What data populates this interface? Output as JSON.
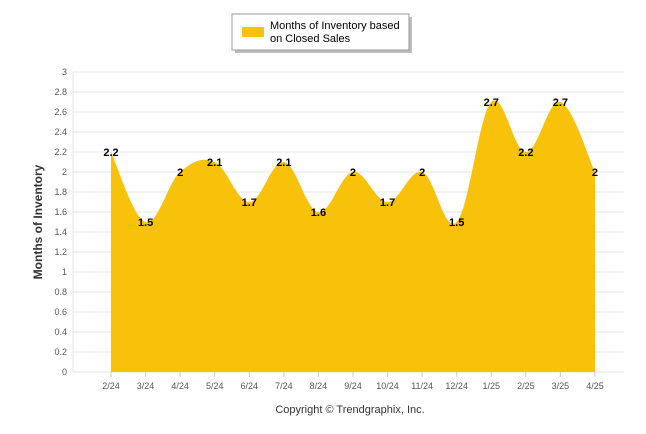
{
  "chart_data": {
    "type": "area",
    "categories": [
      "2/24",
      "3/24",
      "4/24",
      "5/24",
      "6/24",
      "7/24",
      "8/24",
      "9/24",
      "10/24",
      "11/24",
      "12/24",
      "1/25",
      "2/25",
      "3/25",
      "4/25"
    ],
    "series": [
      {
        "name": "Months of Inventory based on Closed Sales",
        "values": [
          2.2,
          1.5,
          2,
          2.1,
          1.7,
          2.1,
          1.6,
          2,
          1.7,
          2,
          1.5,
          2.7,
          2.2,
          2.7,
          2
        ],
        "data_labels": [
          "2.2",
          "1.5",
          "2",
          "2.1",
          "1.7",
          "2.1",
          "1.6",
          "2",
          "1.7",
          "2",
          "1.5",
          "2.7",
          "2.2",
          "2.7",
          "2"
        ]
      }
    ],
    "ylabel": "Months of Inventory",
    "xlabel": "",
    "ylim": [
      0,
      3
    ],
    "yticks": [
      "0",
      "0.2",
      "0.4",
      "0.6",
      "0.8",
      "1",
      "1.2",
      "1.4",
      "1.6",
      "1.8",
      "2",
      "2.2",
      "2.4",
      "2.6",
      "2.8",
      "3"
    ],
    "grid": true,
    "legend_position": "top-center",
    "fill_color": "#F8C20A",
    "footer": "Copyright © Trendgraphix, Inc."
  }
}
